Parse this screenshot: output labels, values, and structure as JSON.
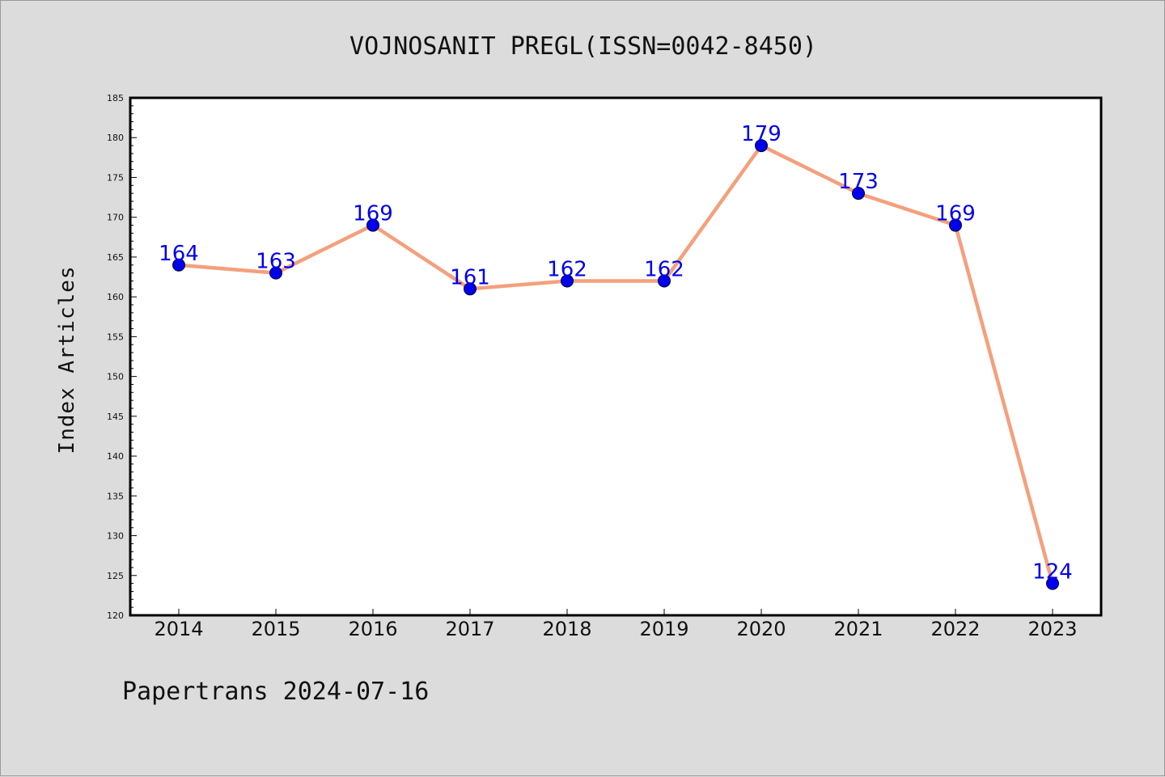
{
  "chart_data": {
    "type": "line",
    "title": "VOJNOSANIT PREGL(ISSN=0042-8450)",
    "xlabel": "",
    "ylabel": "Index Articles",
    "categories": [
      "2014",
      "2015",
      "2016",
      "2017",
      "2018",
      "2019",
      "2020",
      "2021",
      "2022",
      "2023"
    ],
    "values": [
      164,
      163,
      169,
      161,
      162,
      162,
      179,
      173,
      169,
      124
    ],
    "ylim": [
      120,
      185
    ],
    "y_major_step": 5,
    "y_minor_step": 1,
    "grid": false,
    "legend": "none",
    "data_labels": true
  },
  "footer": {
    "text": "Papertrans 2024-07-16"
  },
  "colors": {
    "background": "#dcdcdc",
    "plot_area": "#ffffff",
    "line": "#f4a07c",
    "marker": "#0000ee",
    "data_label": "#0000ee",
    "text": "#111111"
  }
}
